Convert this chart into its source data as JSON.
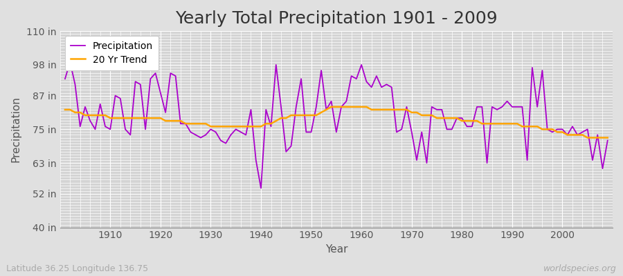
{
  "title": "Yearly Total Precipitation 1901 - 2009",
  "xlabel": "Year",
  "ylabel": "Precipitation",
  "footer_left": "Latitude 36.25 Longitude 136.75",
  "footer_right": "worldspecies.org",
  "years": [
    1901,
    1902,
    1903,
    1904,
    1905,
    1906,
    1907,
    1908,
    1909,
    1910,
    1911,
    1912,
    1913,
    1914,
    1915,
    1916,
    1917,
    1918,
    1919,
    1920,
    1921,
    1922,
    1923,
    1924,
    1925,
    1926,
    1927,
    1928,
    1929,
    1930,
    1931,
    1932,
    1933,
    1934,
    1935,
    1936,
    1937,
    1938,
    1939,
    1940,
    1941,
    1942,
    1943,
    1944,
    1945,
    1946,
    1947,
    1948,
    1949,
    1950,
    1951,
    1952,
    1953,
    1954,
    1955,
    1956,
    1957,
    1958,
    1959,
    1960,
    1961,
    1962,
    1963,
    1964,
    1965,
    1966,
    1967,
    1968,
    1969,
    1970,
    1971,
    1972,
    1973,
    1974,
    1975,
    1976,
    1977,
    1978,
    1979,
    1980,
    1981,
    1982,
    1983,
    1984,
    1985,
    1986,
    1987,
    1988,
    1989,
    1990,
    1991,
    1992,
    1993,
    1994,
    1995,
    1996,
    1997,
    1998,
    1999,
    2000,
    2001,
    2002,
    2003,
    2004,
    2005,
    2006,
    2007,
    2008,
    2009
  ],
  "precip": [
    93,
    99,
    91,
    76,
    83,
    78,
    75,
    84,
    76,
    75,
    87,
    86,
    75,
    73,
    92,
    91,
    75,
    93,
    95,
    88,
    81,
    95,
    94,
    77,
    77,
    74,
    73,
    72,
    73,
    75,
    74,
    71,
    70,
    73,
    75,
    74,
    73,
    82,
    64,
    54,
    82,
    76,
    98,
    83,
    67,
    69,
    83,
    93,
    74,
    74,
    83,
    96,
    82,
    85,
    74,
    83,
    85,
    94,
    93,
    98,
    92,
    90,
    94,
    90,
    91,
    90,
    74,
    75,
    83,
    74,
    64,
    74,
    63,
    83,
    82,
    82,
    75,
    75,
    79,
    79,
    76,
    76,
    83,
    83,
    63,
    83,
    82,
    83,
    85,
    83,
    83,
    83,
    64,
    97,
    83,
    96,
    75,
    74,
    75,
    75,
    73,
    76,
    73,
    74,
    75,
    64,
    73,
    61,
    71
  ],
  "trend": [
    82,
    82,
    81,
    81,
    80,
    80,
    80,
    80,
    80,
    79,
    79,
    79,
    79,
    79,
    79,
    79,
    79,
    79,
    79,
    79,
    78,
    78,
    78,
    78,
    77,
    77,
    77,
    77,
    77,
    76,
    76,
    76,
    76,
    76,
    76,
    76,
    76,
    76,
    76,
    76,
    77,
    77,
    78,
    79,
    79,
    80,
    80,
    80,
    80,
    80,
    80,
    81,
    82,
    83,
    83,
    83,
    83,
    83,
    83,
    83,
    83,
    82,
    82,
    82,
    82,
    82,
    82,
    82,
    82,
    81,
    81,
    80,
    80,
    80,
    79,
    79,
    79,
    79,
    79,
    78,
    78,
    78,
    78,
    77,
    77,
    77,
    77,
    77,
    77,
    77,
    77,
    76,
    76,
    76,
    76,
    75,
    75,
    75,
    74,
    74,
    73,
    73,
    73,
    73,
    72,
    72,
    72,
    72,
    72
  ],
  "precip_color": "#AA00CC",
  "trend_color": "#FFA500",
  "bg_color": "#E0E0E0",
  "plot_bg_color": "#D4D4D4",
  "grid_color": "#FFFFFF",
  "ylim": [
    40,
    110
  ],
  "yticks": [
    40,
    52,
    63,
    75,
    87,
    98,
    110
  ],
  "ytick_labels": [
    "40 in",
    "52 in",
    "63 in",
    "75 in",
    "87 in",
    "98 in",
    "110 in"
  ],
  "xticks": [
    1910,
    1920,
    1930,
    1940,
    1950,
    1960,
    1970,
    1980,
    1990,
    2000
  ],
  "xlim_min": 1900,
  "xlim_max": 2010,
  "title_fontsize": 18,
  "axis_label_fontsize": 11,
  "tick_fontsize": 10,
  "legend_fontsize": 10,
  "footer_fontsize": 9
}
